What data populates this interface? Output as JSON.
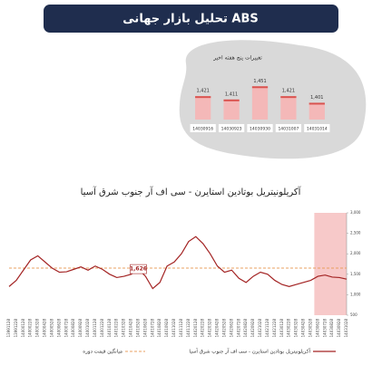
{
  "header": {
    "title": "تحلیل بازار جهانی ABS"
  },
  "chart_data": [
    {
      "type": "bar",
      "title": "تغییرات پنج هفته اخیر",
      "categories": [
        "14030916",
        "14030923",
        "14030930",
        "14031007",
        "14031014"
      ],
      "values": [
        1421,
        1411,
        1451,
        1421,
        1401
      ],
      "value_labels": [
        "1,421",
        "1,411",
        "1,451",
        "1,421",
        "1,401"
      ],
      "color": "#f4b8b8",
      "ylim": [
        1350,
        1460
      ]
    },
    {
      "type": "line",
      "title": "آکریلونیتریل بوتادین استایرن - سی اف آر جنوب شرق آسیا",
      "categories": [
        "13991128",
        "13991228",
        "14000128",
        "14000228",
        "14000328",
        "14000428",
        "14000528",
        "14000628",
        "14000728",
        "14000828",
        "14000928",
        "14001028",
        "14001128",
        "14001228",
        "14010128",
        "14010228",
        "14010328",
        "14010428",
        "14010528",
        "14010628",
        "14010728",
        "14010828",
        "14010928",
        "14011028",
        "14011128",
        "14011228",
        "14020128",
        "14020228",
        "14020328",
        "14020428",
        "14020528",
        "14020628",
        "14020728",
        "14020828",
        "14020928",
        "14021028",
        "14021128",
        "14021228",
        "14030128",
        "14030228",
        "14030328",
        "14030428",
        "14030528",
        "14030628",
        "14030728",
        "14030828",
        "14030928",
        "14031028"
      ],
      "series": [
        {
          "name": "آکریلونیتریل بوتادین استایرن - سی اف آر جنوب شرق آسیا",
          "color": "#a32323",
          "values": [
            1200,
            1350,
            1600,
            1850,
            1950,
            1800,
            1650,
            1550,
            1560,
            1620,
            1680,
            1600,
            1700,
            1620,
            1500,
            1420,
            1450,
            1500,
            1626,
            1450,
            1150,
            1300,
            1700,
            1800,
            2000,
            2300,
            2420,
            2250,
            2000,
            1700,
            1550,
            1600,
            1400,
            1300,
            1450,
            1550,
            1500,
            1350,
            1250,
            1200,
            1250,
            1300,
            1350,
            1450,
            1480,
            1430,
            1420,
            1380
          ]
        }
      ],
      "average": {
        "name": "میانگین قیمت دوره",
        "value": 1650,
        "color": "#e8a060"
      },
      "annotation": {
        "x": "14010528",
        "value": 1626,
        "label": "1,626"
      },
      "highlight": {
        "from": "14030628",
        "to": "14031028",
        "color": "#f7c9c9"
      },
      "ylim": [
        500,
        3000
      ],
      "yticks": [
        {
          "value": 3000,
          "label": "3,000"
        },
        {
          "value": 2500,
          "label": "2,500"
        },
        {
          "value": 2000,
          "label": "2,000"
        },
        {
          "value": 1500,
          "label": "1,500"
        },
        {
          "value": 1000,
          "label": "1,000"
        },
        {
          "value": 500,
          "label": "500"
        }
      ]
    }
  ]
}
